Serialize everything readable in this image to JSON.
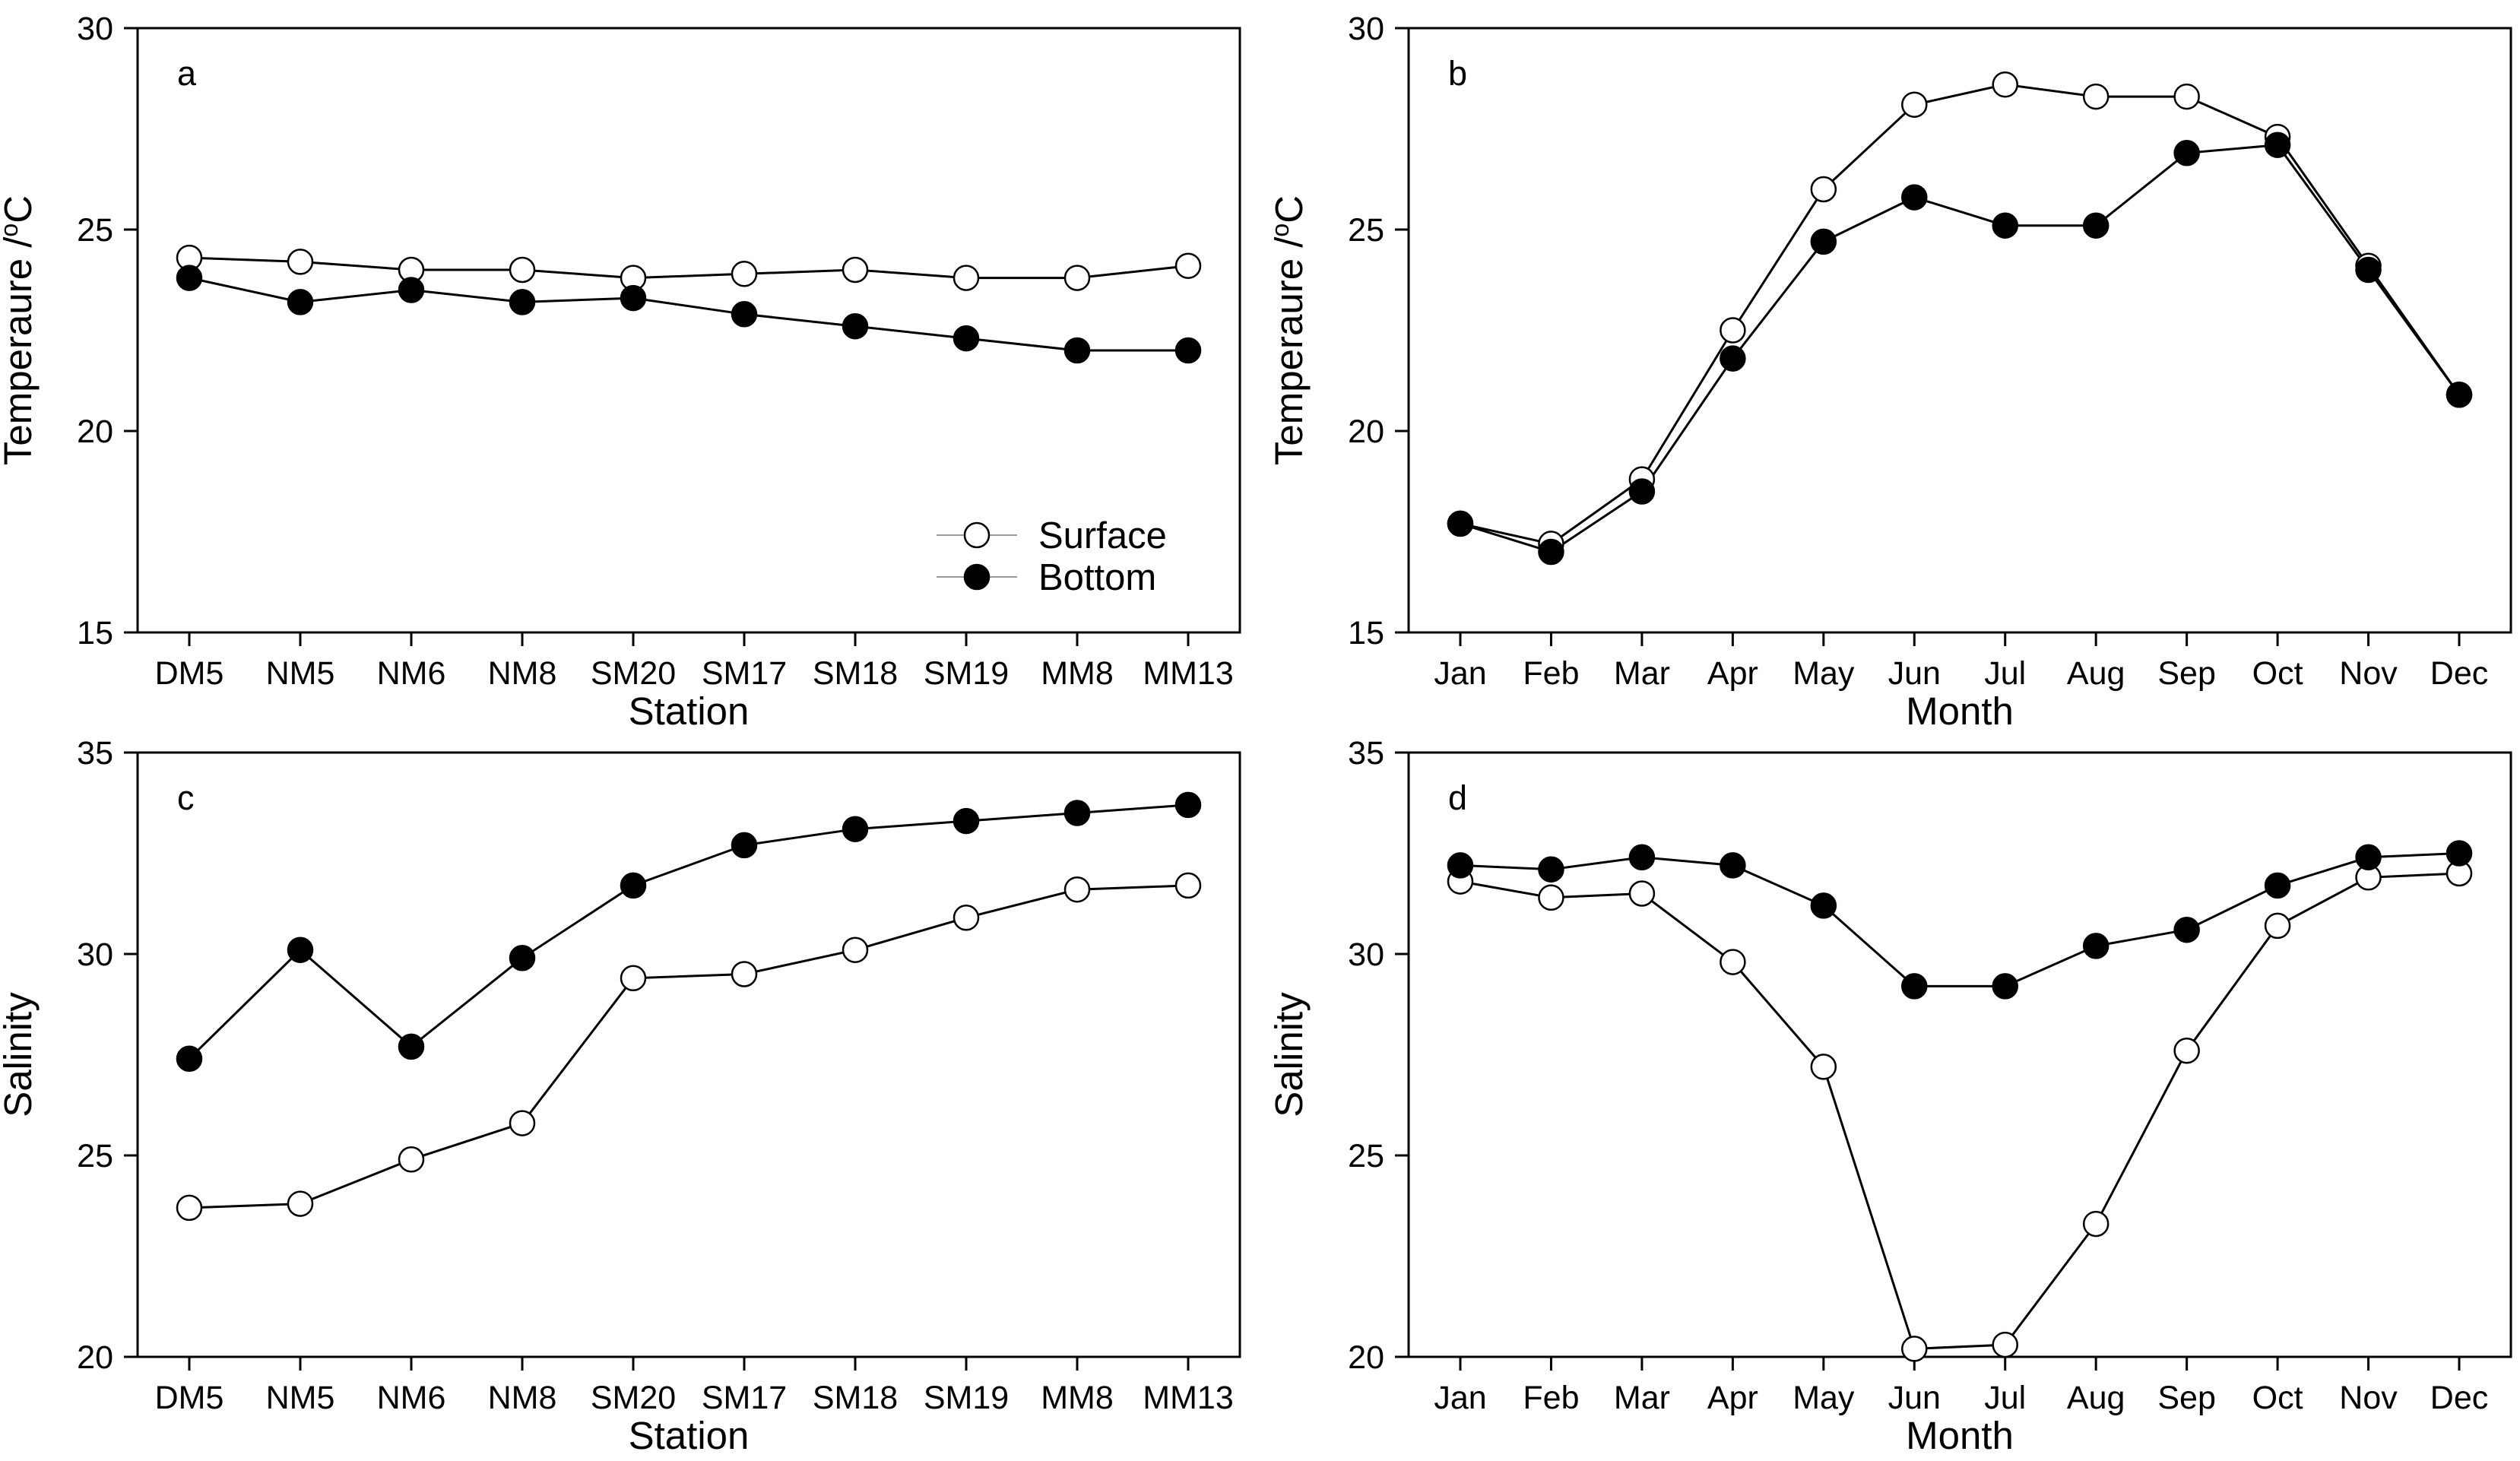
{
  "colors": {
    "surface_fill": "#ffffff",
    "bottom_fill": "#000000",
    "axis": "#000000"
  },
  "legend": {
    "placement": "bottom-right of panel a",
    "surface_label": "Surface",
    "bottom_label": "Bottom"
  },
  "chart_data": [
    {
      "type": "line",
      "panel_label": "a",
      "xlabel": "Station",
      "ylabel_main": "Temperaure /",
      "ylabel_sup": "o",
      "ylabel_tail": "C",
      "ylim": [
        15,
        30
      ],
      "yticks": [
        15,
        20,
        25,
        30
      ],
      "categories": [
        "DM5",
        "NM5",
        "NM6",
        "NM8",
        "SM20",
        "SM17",
        "SM18",
        "SM19",
        "MM8",
        "MM13"
      ],
      "series": [
        {
          "name": "Surface",
          "marker": "open",
          "values": [
            24.3,
            24.2,
            24.0,
            24.0,
            23.8,
            23.9,
            24.0,
            23.8,
            23.8,
            24.1
          ]
        },
        {
          "name": "Bottom",
          "marker": "filled",
          "values": [
            23.8,
            23.2,
            23.5,
            23.2,
            23.3,
            22.9,
            22.6,
            22.3,
            22.0,
            22.0
          ]
        }
      ]
    },
    {
      "type": "line",
      "panel_label": "b",
      "xlabel": "Month",
      "ylabel_main": "Temperaure /",
      "ylabel_sup": "o",
      "ylabel_tail": "C",
      "ylim": [
        15,
        30
      ],
      "yticks": [
        15,
        20,
        25,
        30
      ],
      "categories": [
        "Jan",
        "Feb",
        "Mar",
        "Apr",
        "May",
        "Jun",
        "Jul",
        "Aug",
        "Sep",
        "Oct",
        "Nov",
        "Dec"
      ],
      "series": [
        {
          "name": "Surface",
          "marker": "open",
          "values": [
            17.7,
            17.2,
            18.8,
            22.5,
            26.0,
            28.1,
            28.6,
            28.3,
            28.3,
            27.3,
            24.1,
            20.9
          ]
        },
        {
          "name": "Bottom",
          "marker": "filled",
          "values": [
            17.7,
            17.0,
            18.5,
            21.8,
            24.7,
            25.8,
            25.1,
            25.1,
            26.9,
            27.1,
            24.0,
            20.9
          ]
        }
      ]
    },
    {
      "type": "line",
      "panel_label": "c",
      "xlabel": "Station",
      "ylabel_main": "Salinity",
      "ylabel_sup": "",
      "ylabel_tail": "",
      "ylim": [
        20,
        35
      ],
      "yticks": [
        20,
        25,
        30,
        35
      ],
      "categories": [
        "DM5",
        "NM5",
        "NM6",
        "NM8",
        "SM20",
        "SM17",
        "SM18",
        "SM19",
        "MM8",
        "MM13"
      ],
      "series": [
        {
          "name": "Surface",
          "marker": "open",
          "values": [
            23.7,
            23.8,
            24.9,
            25.8,
            29.4,
            29.5,
            30.1,
            30.9,
            31.6,
            31.7
          ]
        },
        {
          "name": "Bottom",
          "marker": "filled",
          "values": [
            27.4,
            30.1,
            27.7,
            29.9,
            31.7,
            32.7,
            33.1,
            33.3,
            33.5,
            33.7
          ]
        }
      ]
    },
    {
      "type": "line",
      "panel_label": "d",
      "xlabel": "Month",
      "ylabel_main": "Salinity",
      "ylabel_sup": "",
      "ylabel_tail": "",
      "ylim": [
        20,
        35
      ],
      "yticks": [
        20,
        25,
        30,
        35
      ],
      "categories": [
        "Jan",
        "Feb",
        "Mar",
        "Apr",
        "May",
        "Jun",
        "Jul",
        "Aug",
        "Sep",
        "Oct",
        "Nov",
        "Dec"
      ],
      "series": [
        {
          "name": "Surface",
          "marker": "open",
          "values": [
            31.8,
            31.4,
            31.5,
            29.8,
            27.2,
            20.2,
            20.3,
            23.3,
            27.6,
            30.7,
            31.9,
            32.0
          ]
        },
        {
          "name": "Bottom",
          "marker": "filled",
          "values": [
            32.2,
            32.1,
            32.4,
            32.2,
            31.2,
            29.2,
            29.2,
            30.2,
            30.6,
            31.7,
            32.4,
            32.5
          ]
        }
      ]
    }
  ]
}
